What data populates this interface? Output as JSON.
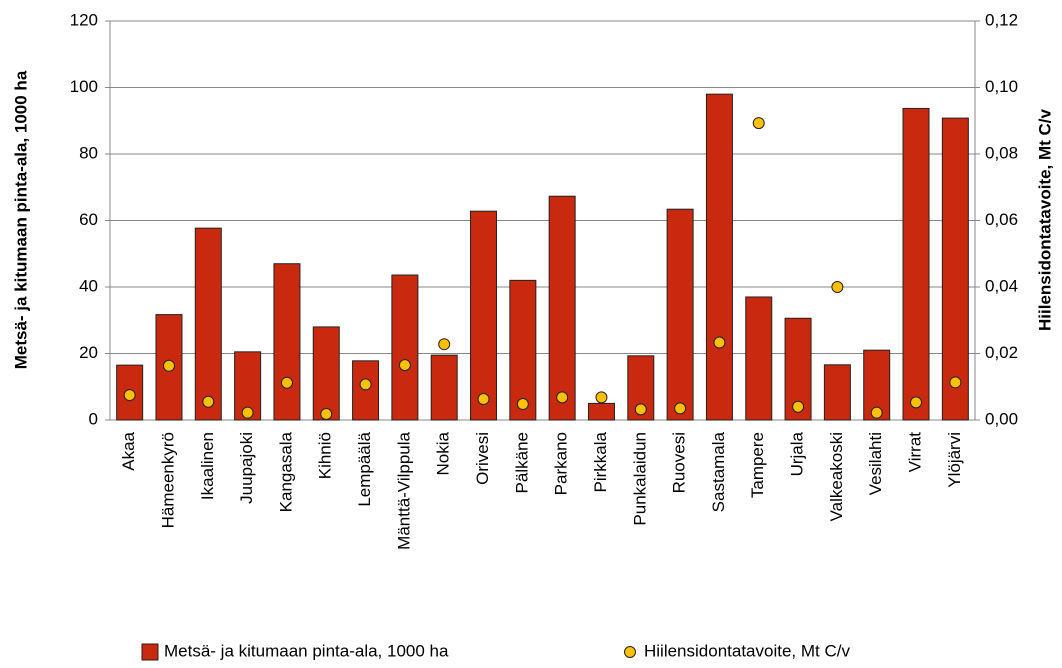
{
  "chart_data": {
    "type": "bar",
    "ylabel": "Metsä- ja kitumaan pinta-ala, 1000 ha",
    "y2label": "Hiilensidontatavoite, Mt C/v",
    "categories": [
      "Akaa",
      "Hämeenkyrö",
      "Ikaalinen",
      "Juupajoki",
      "Kangasala",
      "Kihniö",
      "Lempäälä",
      "Mänttä-Vilppula",
      "Nokia",
      "Orivesi",
      "Pälkäne",
      "Parkano",
      "Pirkkala",
      "Punkalaidun",
      "Ruovesi",
      "Sastamala",
      "Tampere",
      "Urjala",
      "Valkeakoski",
      "Vesilahti",
      "Virrat",
      "Ylöjärvi"
    ],
    "series": [
      {
        "name": "Metsä- ja kitumaan pinta-ala, 1000 ha",
        "color": "#c9290e",
        "type": "bar",
        "values": [
          16.5,
          31.7,
          57.7,
          20.5,
          47,
          28,
          17.8,
          43.6,
          19.5,
          62.8,
          42,
          67.3,
          5,
          19.3,
          63.4,
          98,
          37,
          30.6,
          16.6,
          21,
          93.7,
          90.8
        ]
      },
      {
        "name": "Hiilensidontatavoite, Mt C/v",
        "color": "#ffc000",
        "type": "scatter",
        "axis": "y2",
        "values": [
          0.0075,
          0.0163,
          0.0055,
          0.0022,
          0.0112,
          0.0018,
          0.0107,
          0.0165,
          0.0228,
          0.0063,
          0.0048,
          0.0068,
          0.0068,
          0.0032,
          0.0035,
          0.0233,
          0.0893,
          0.004,
          0.04,
          0.0022,
          0.0053,
          0.0113
        ]
      }
    ],
    "ylim": [
      0,
      120
    ],
    "yticks": [
      0,
      20,
      40,
      60,
      80,
      100,
      120
    ],
    "y2lim": [
      0,
      0.12
    ],
    "y2ticks": [
      {
        "value": 0,
        "label": "0,00"
      },
      {
        "value": 0.02,
        "label": "0,02"
      },
      {
        "value": 0.04,
        "label": "0,04"
      },
      {
        "value": 0.06,
        "label": "0,06"
      },
      {
        "value": 0.08,
        "label": "0,08"
      },
      {
        "value": 0.1,
        "label": "0,10"
      },
      {
        "value": 0.12,
        "label": "0,12"
      }
    ],
    "grid": true,
    "legend": "bottom"
  }
}
